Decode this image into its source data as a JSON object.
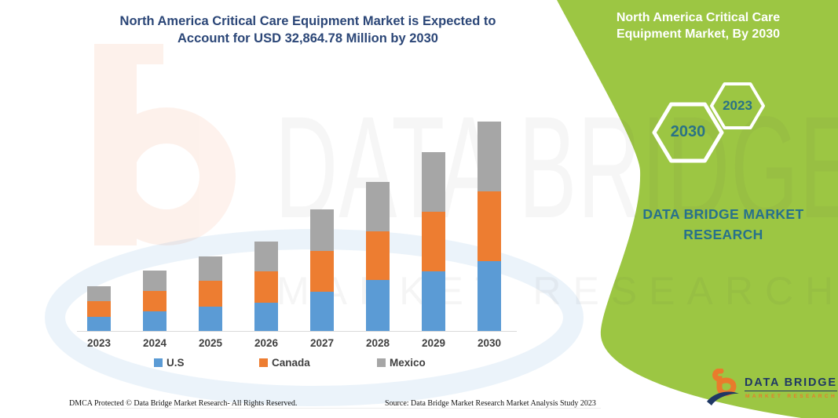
{
  "header": {
    "title_line1": "North America Critical Care Equipment Market is Expected to",
    "title_line2": "Account for USD 32,864.78 Million by 2030"
  },
  "side_panel": {
    "title": "North America Critical Care Equipment Market, By 2030",
    "hexagon_front": "2030",
    "hexagon_back": "2023",
    "brand_text": "DATA BRIDGE MARKET RESEARCH",
    "panel_color": "#9CC643",
    "accent_text_color": "#27718C"
  },
  "watermark": {
    "line1": "DATA BRIDGE",
    "line2": "MARKET RESEARCH"
  },
  "chart_data": {
    "type": "bar",
    "stacked": true,
    "title": "North America Critical Care Equipment Market is Expected to Account for USD 32,864.78 Million by 2030",
    "unit": "USD Million",
    "categories": [
      "2023",
      "2024",
      "2025",
      "2026",
      "2027",
      "2028",
      "2029",
      "2030"
    ],
    "series": [
      {
        "name": "U.S",
        "color": "#5B9BD5",
        "values": [
          2216,
          3114,
          3853,
          4468,
          6118,
          7964,
          9318,
          10918
        ]
      },
      {
        "name": "Canada",
        "color": "#ED7D31",
        "values": [
          2462,
          3200,
          3988,
          4924,
          6438,
          7669,
          9392,
          10992
        ]
      },
      {
        "name": "Mexico",
        "color": "#A6A6A6",
        "values": [
          2339,
          3163,
          3853,
          4702,
          6524,
          7755,
          9355,
          10954.78
        ]
      }
    ],
    "totals": [
      7017,
      9477,
      11694,
      14094,
      19080,
      23388,
      28065,
      32864.78
    ],
    "ylim": [
      0,
      33000
    ],
    "y_axis_visible": false,
    "gridlines": false,
    "legend_position": "bottom",
    "xlabel": "",
    "ylabel": ""
  },
  "footer": {
    "dmca": "DMCA Protected © Data Bridge Market Research-  All Rights Reserved.",
    "source": "Source: Data Bridge Market Research  Market Analysis Study 2023"
  },
  "logo": {
    "name": "DATA BRIDGE",
    "sub": "MARKET RESEARCH"
  }
}
